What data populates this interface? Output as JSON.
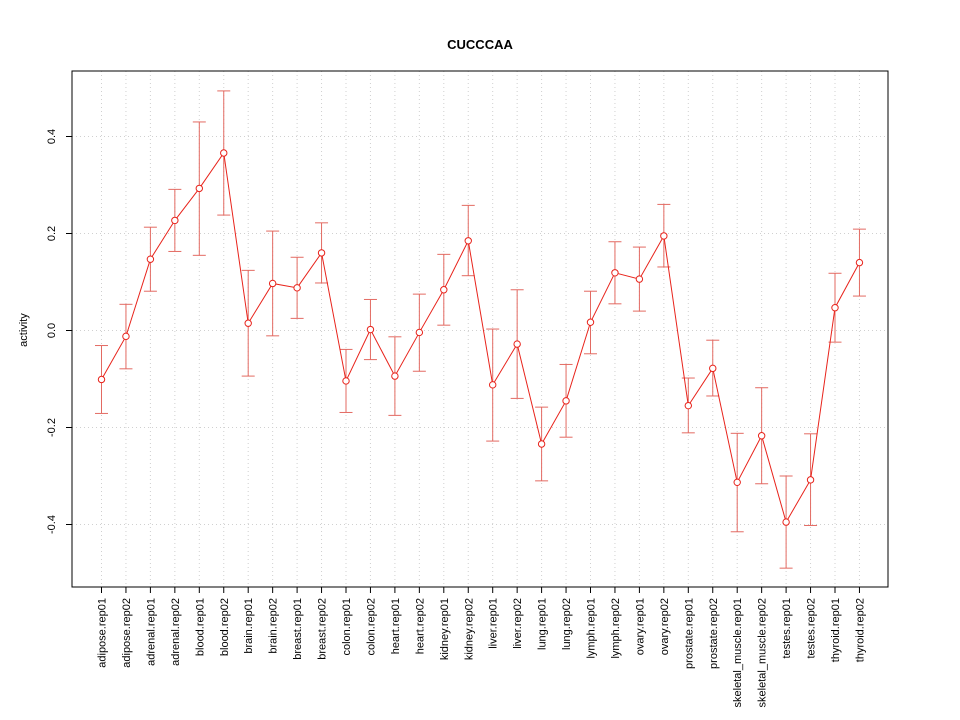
{
  "chart_data": {
    "type": "line",
    "title": "CUCCCAA",
    "xlabel": "",
    "ylabel": "activity",
    "ylim": [
      -0.53,
      0.53
    ],
    "yticks": [
      -0.4,
      -0.2,
      0.0,
      0.2,
      0.4
    ],
    "ytick_labels": [
      "-0.4",
      "-0.2",
      "0.0",
      "0.2",
      "0.4"
    ],
    "grid": true,
    "categories": [
      "adipose.rep01",
      "adipose.rep02",
      "adrenal.rep01",
      "adrenal.rep02",
      "blood.rep01",
      "blood.rep02",
      "brain.rep01",
      "brain.rep02",
      "breast.rep01",
      "breast.rep02",
      "colon.rep01",
      "colon.rep02",
      "heart.rep01",
      "heart.rep02",
      "kidney.rep01",
      "kidney.rep02",
      "liver.rep01",
      "liver.rep02",
      "lung.rep01",
      "lung.rep02",
      "lymph.rep01",
      "lymph.rep02",
      "ovary.rep01",
      "ovary.rep02",
      "prostate.rep01",
      "prostate.rep02",
      "skeletal_muscle.rep01",
      "skeletal_muscle.rep02",
      "testes.rep01",
      "testes.rep02",
      "thyroid.rep01",
      "thyroid.rep02"
    ],
    "series": [
      {
        "values": [
          -0.101,
          -0.012,
          0.147,
          0.227,
          0.293,
          0.366,
          0.015,
          0.097,
          0.088,
          0.16,
          -0.104,
          0.002,
          -0.094,
          -0.004,
          0.084,
          0.185,
          -0.112,
          -0.028,
          -0.234,
          -0.145,
          0.017,
          0.119,
          0.106,
          0.195,
          -0.155,
          -0.078,
          -0.313,
          -0.217,
          -0.395,
          -0.308,
          0.047,
          0.14
        ],
        "lower": [
          -0.171,
          -0.079,
          0.081,
          0.163,
          0.155,
          0.238,
          -0.094,
          -0.011,
          0.025,
          0.098,
          -0.169,
          -0.06,
          -0.175,
          -0.084,
          0.011,
          0.113,
          -0.228,
          -0.14,
          -0.31,
          -0.22,
          -0.048,
          0.055,
          0.04,
          0.131,
          -0.211,
          -0.135,
          -0.415,
          -0.316,
          -0.49,
          -0.402,
          -0.024,
          0.071
        ],
        "upper": [
          -0.031,
          0.054,
          0.213,
          0.291,
          0.43,
          0.494,
          0.124,
          0.205,
          0.151,
          0.222,
          -0.039,
          0.064,
          -0.013,
          0.075,
          0.157,
          0.258,
          0.003,
          0.084,
          -0.158,
          -0.07,
          0.081,
          0.183,
          0.172,
          0.26,
          -0.098,
          -0.02,
          -0.212,
          -0.118,
          -0.3,
          -0.213,
          0.118,
          0.209
        ]
      }
    ],
    "colors": {
      "series": "#e8231b",
      "errorbar": "#e36a62",
      "grid": "#d0d0d0",
      "axis": "#000000"
    }
  }
}
